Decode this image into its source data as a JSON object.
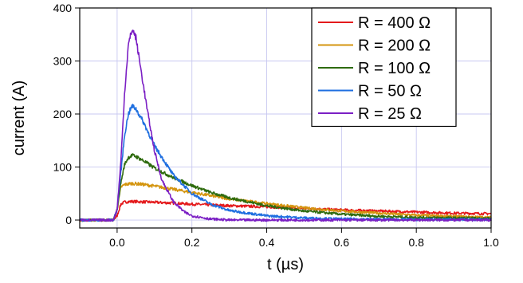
{
  "chart_data": {
    "type": "line",
    "xlabel": "t (µs)",
    "ylabel": "current (A)",
    "xlim": [
      -0.1,
      1.0
    ],
    "ylim": [
      -15,
      400
    ],
    "xticks": [
      0.0,
      0.2,
      0.4,
      0.6,
      0.8,
      1.0
    ],
    "xtick_labels": [
      "0.0",
      "0.2",
      "0.4",
      "0.6",
      "0.8",
      "1.0"
    ],
    "yticks": [
      0,
      100,
      200,
      300,
      400
    ],
    "ytick_labels": [
      "0",
      "100",
      "200",
      "300",
      "400"
    ],
    "grid": true,
    "legend_position": "top-right",
    "series": [
      {
        "name": "R = 400 Ω",
        "color": "#e41a1c",
        "x": [
          -0.1,
          -0.01,
          0.0,
          0.01,
          0.02,
          0.04,
          0.08,
          0.15,
          0.2,
          0.3,
          0.4,
          0.5,
          0.6,
          0.7,
          0.8,
          0.9,
          1.0
        ],
        "y": [
          0,
          0,
          8,
          30,
          34,
          35,
          34,
          32,
          30,
          27,
          25,
          22,
          19,
          17,
          15,
          13,
          12
        ]
      },
      {
        "name": "R = 200 Ω",
        "color": "#d4950f",
        "x": [
          -0.1,
          -0.01,
          0.0,
          0.01,
          0.02,
          0.04,
          0.06,
          0.1,
          0.15,
          0.2,
          0.3,
          0.4,
          0.5,
          0.6,
          0.7,
          0.8,
          0.9,
          1.0
        ],
        "y": [
          0,
          0,
          20,
          62,
          67,
          69,
          68,
          64,
          58,
          52,
          40,
          31,
          23,
          17,
          13,
          9,
          7,
          5
        ]
      },
      {
        "name": "R = 100 Ω",
        "color": "#2e6b0e",
        "x": [
          -0.1,
          -0.01,
          0.0,
          0.01,
          0.02,
          0.03,
          0.04,
          0.05,
          0.07,
          0.1,
          0.15,
          0.2,
          0.25,
          0.3,
          0.4,
          0.5,
          0.6,
          0.7,
          0.8,
          0.9,
          1.0
        ],
        "y": [
          0,
          0,
          20,
          70,
          105,
          118,
          122,
          120,
          112,
          98,
          80,
          65,
          52,
          42,
          27,
          17,
          11,
          7,
          5,
          4,
          3
        ]
      },
      {
        "name": "R = 50 Ω",
        "color": "#1f6fe0",
        "x": [
          -0.1,
          -0.01,
          0.0,
          0.01,
          0.02,
          0.03,
          0.04,
          0.05,
          0.07,
          0.1,
          0.15,
          0.2,
          0.25,
          0.3,
          0.4,
          0.5,
          0.6,
          0.8,
          1.0
        ],
        "y": [
          0,
          0,
          20,
          90,
          160,
          200,
          215,
          210,
          185,
          140,
          85,
          50,
          30,
          18,
          8,
          4,
          2,
          1,
          1
        ]
      },
      {
        "name": "R = 25 Ω",
        "color": "#7b1fc4",
        "x": [
          -0.1,
          -0.01,
          0.0,
          0.01,
          0.02,
          0.03,
          0.04,
          0.05,
          0.06,
          0.08,
          0.1,
          0.12,
          0.15,
          0.18,
          0.2,
          0.25,
          0.3,
          0.4,
          0.6,
          1.0
        ],
        "y": [
          0,
          0,
          20,
          110,
          240,
          330,
          360,
          345,
          300,
          210,
          130,
          75,
          35,
          15,
          8,
          2,
          0,
          0,
          0,
          0
        ]
      }
    ]
  }
}
